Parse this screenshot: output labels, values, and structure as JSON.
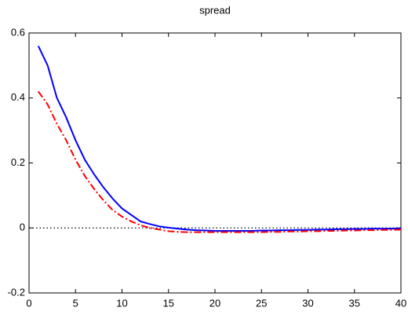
{
  "chart_data": {
    "type": "line",
    "title": "spread",
    "x": [
      1,
      2,
      3,
      4,
      5,
      6,
      7,
      8,
      9,
      10,
      11,
      12,
      13,
      14,
      15,
      16,
      17,
      18,
      19,
      20,
      21,
      22,
      23,
      24,
      25,
      26,
      27,
      28,
      29,
      30,
      31,
      32,
      33,
      34,
      35,
      36,
      37,
      38,
      39,
      40
    ],
    "series": [
      {
        "color": "#0000ff",
        "style": "solid",
        "values": [
          0.56,
          0.5,
          0.4,
          0.34,
          0.27,
          0.21,
          0.165,
          0.125,
          0.09,
          0.06,
          0.04,
          0.02,
          0.012,
          0.005,
          0.001,
          -0.002,
          -0.005,
          -0.007,
          -0.008,
          -0.009,
          -0.009,
          -0.009,
          -0.009,
          -0.009,
          -0.008,
          -0.008,
          -0.007,
          -0.007,
          -0.006,
          -0.006,
          -0.005,
          -0.005,
          -0.004,
          -0.004,
          -0.003,
          -0.003,
          -0.002,
          -0.002,
          -0.002,
          -0.001
        ]
      },
      {
        "color": "#ff0000",
        "style": "dashdot",
        "values": [
          0.42,
          0.38,
          0.32,
          0.27,
          0.21,
          0.16,
          0.12,
          0.085,
          0.055,
          0.035,
          0.02,
          0.008,
          0.0,
          -0.005,
          -0.01,
          -0.012,
          -0.013,
          -0.013,
          -0.013,
          -0.013,
          -0.013,
          -0.013,
          -0.013,
          -0.013,
          -0.013,
          -0.012,
          -0.012,
          -0.011,
          -0.011,
          -0.01,
          -0.01,
          -0.009,
          -0.009,
          -0.008,
          -0.008,
          -0.007,
          -0.007,
          -0.006,
          -0.006,
          -0.005
        ]
      }
    ],
    "hline": 0,
    "xlim": [
      0,
      40
    ],
    "xticks": [
      0,
      5,
      10,
      15,
      20,
      25,
      30,
      35,
      40
    ],
    "ylim": [
      -0.2,
      0.6
    ],
    "yticks": [
      -0.2,
      0,
      0.2,
      0.4,
      0.6
    ]
  }
}
